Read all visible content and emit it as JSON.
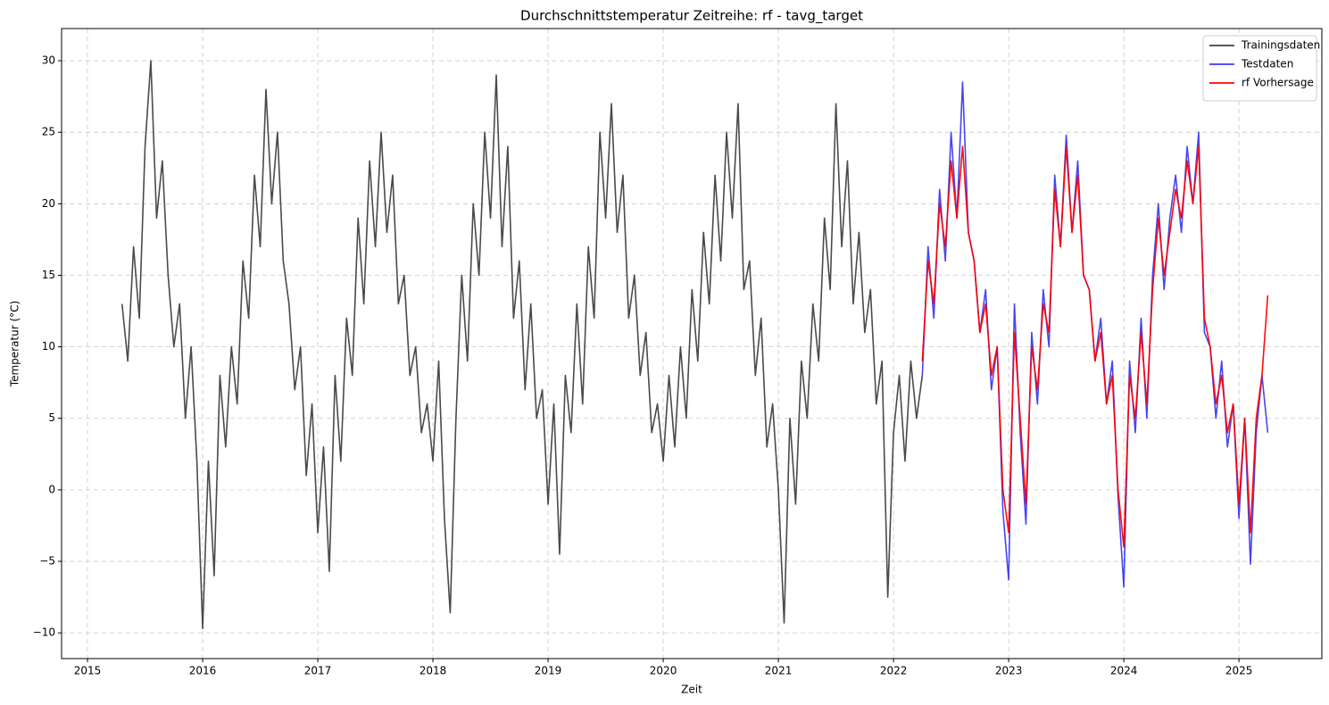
{
  "chart_data": {
    "type": "line",
    "title": "Durchschnittstemperatur Zeitreihe: rf - tavg_target",
    "x_label": "Zeit",
    "y_label": "Temperatur (°C)",
    "xlim": [
      2014.775,
      2025.72
    ],
    "ylim": [
      -11.8,
      32.25
    ],
    "xticks": [
      2015,
      2016,
      2017,
      2018,
      2019,
      2020,
      2021,
      2022,
      2023,
      2024,
      2025
    ],
    "yticks": [
      {
        "value": -10,
        "label": "−10"
      },
      {
        "value": -5,
        "label": "−5"
      },
      0,
      5,
      10,
      15,
      20,
      25,
      30
    ],
    "grid": true,
    "legend": "upper-right",
    "series": [
      {
        "name": "Trainingsdaten",
        "color": "#404040",
        "x": [
          2015.3,
          2015.35,
          2015.4,
          2015.45,
          2015.5,
          2015.55,
          2015.6,
          2015.65,
          2015.7,
          2015.75,
          2015.8,
          2015.85,
          2015.9,
          2015.95,
          2016.0,
          2016.05,
          2016.1,
          2016.15,
          2016.2,
          2016.25,
          2016.3,
          2016.35,
          2016.4,
          2016.45,
          2016.5,
          2016.55,
          2016.6,
          2016.65,
          2016.7,
          2016.75,
          2016.8,
          2016.85,
          2016.9,
          2016.95,
          2017.0,
          2017.05,
          2017.1,
          2017.15,
          2017.2,
          2017.25,
          2017.3,
          2017.35,
          2017.4,
          2017.45,
          2017.5,
          2017.55,
          2017.6,
          2017.65,
          2017.7,
          2017.75,
          2017.8,
          2017.85,
          2017.9,
          2017.95,
          2018.0,
          2018.05,
          2018.1,
          2018.15,
          2018.2,
          2018.25,
          2018.3,
          2018.35,
          2018.4,
          2018.45,
          2018.5,
          2018.55,
          2018.6,
          2018.65,
          2018.7,
          2018.75,
          2018.8,
          2018.85,
          2018.9,
          2018.95,
          2019.0,
          2019.05,
          2019.1,
          2019.15,
          2019.2,
          2019.25,
          2019.3,
          2019.35,
          2019.4,
          2019.45,
          2019.5,
          2019.55,
          2019.6,
          2019.65,
          2019.7,
          2019.75,
          2019.8,
          2019.85,
          2019.9,
          2019.95,
          2020.0,
          2020.05,
          2020.1,
          2020.15,
          2020.2,
          2020.25,
          2020.3,
          2020.35,
          2020.4,
          2020.45,
          2020.5,
          2020.55,
          2020.6,
          2020.65,
          2020.7,
          2020.75,
          2020.8,
          2020.85,
          2020.9,
          2020.95,
          2021.0,
          2021.05,
          2021.1,
          2021.15,
          2021.2,
          2021.25,
          2021.3,
          2021.35,
          2021.4,
          2021.45,
          2021.5,
          2021.55,
          2021.6,
          2021.65,
          2021.7,
          2021.75,
          2021.8,
          2021.85,
          2021.9,
          2021.95,
          2022.0,
          2022.05,
          2022.1,
          2022.15,
          2022.2,
          2022.25
        ],
        "values": [
          13,
          9,
          17,
          12,
          24,
          30,
          19,
          23,
          15,
          10,
          13,
          5,
          10,
          2,
          -9.7,
          2,
          -6,
          8,
          3,
          10,
          6,
          16,
          12,
          22,
          17,
          28,
          20,
          25,
          16,
          13,
          7,
          10,
          1,
          6,
          -3,
          3,
          -5.7,
          8,
          2,
          12,
          8,
          19,
          13,
          23,
          17,
          25,
          18,
          22,
          13,
          15,
          8,
          10,
          4,
          6,
          2,
          9,
          -2,
          -8.6,
          5,
          15,
          9,
          20,
          15,
          25,
          19,
          29,
          17,
          24,
          12,
          16,
          7,
          13,
          5,
          7,
          -1,
          6,
          -4.5,
          8,
          4,
          13,
          6,
          17,
          12,
          25,
          19,
          27,
          18,
          22,
          12,
          15,
          8,
          11,
          4,
          6,
          2,
          8,
          3,
          10,
          5,
          14,
          9,
          18,
          13,
          22,
          16,
          25,
          19,
          27,
          14,
          16,
          8,
          12,
          3,
          6,
          0,
          -9.3,
          5,
          -1,
          9,
          5,
          13,
          9,
          19,
          14,
          27,
          17,
          23,
          13,
          18,
          11,
          14,
          6,
          9,
          -7.5,
          4,
          8,
          2,
          9,
          5,
          8
        ]
      },
      {
        "name": "Testdaten",
        "color": "#3c3cf0",
        "x": [
          2022.25,
          2022.3,
          2022.35,
          2022.4,
          2022.45,
          2022.5,
          2022.55,
          2022.6,
          2022.65,
          2022.7,
          2022.75,
          2022.8,
          2022.85,
          2022.9,
          2022.95,
          2023.0,
          2023.05,
          2023.1,
          2023.15,
          2023.2,
          2023.25,
          2023.3,
          2023.35,
          2023.4,
          2023.45,
          2023.5,
          2023.55,
          2023.6,
          2023.65,
          2023.7,
          2023.75,
          2023.8,
          2023.85,
          2023.9,
          2023.95,
          2024.0,
          2024.05,
          2024.1,
          2024.15,
          2024.2,
          2024.25,
          2024.3,
          2024.35,
          2024.4,
          2024.45,
          2024.5,
          2024.55,
          2024.6,
          2024.65,
          2024.7,
          2024.75,
          2024.8,
          2024.85,
          2024.9,
          2024.95,
          2025.0,
          2025.05,
          2025.1,
          2025.15,
          2025.2,
          2025.25
        ],
        "values": [
          8,
          17,
          12,
          21,
          16,
          25,
          19,
          28.5,
          18,
          16,
          11,
          14,
          7,
          10,
          -1.5,
          -6.3,
          13,
          4,
          -2.4,
          11,
          6,
          14,
          10,
          22,
          17,
          24.8,
          18,
          23,
          15,
          14,
          9,
          12,
          6,
          9,
          -0.5,
          -6.8,
          9,
          4,
          12,
          5,
          15,
          20,
          14,
          19,
          22,
          18,
          24,
          20,
          25,
          11,
          10,
          5,
          9,
          3,
          6,
          -2,
          5,
          -5.2,
          4,
          8,
          4
        ]
      },
      {
        "name": "rf Vorhersage",
        "color": "#ff0000",
        "x": [
          2022.25,
          2022.3,
          2022.35,
          2022.4,
          2022.45,
          2022.5,
          2022.55,
          2022.6,
          2022.65,
          2022.7,
          2022.75,
          2022.8,
          2022.85,
          2022.9,
          2022.95,
          2023.0,
          2023.05,
          2023.1,
          2023.15,
          2023.2,
          2023.25,
          2023.3,
          2023.35,
          2023.4,
          2023.45,
          2023.5,
          2023.55,
          2023.6,
          2023.65,
          2023.7,
          2023.75,
          2023.8,
          2023.85,
          2023.9,
          2023.95,
          2024.0,
          2024.05,
          2024.1,
          2024.15,
          2024.2,
          2024.25,
          2024.3,
          2024.35,
          2024.4,
          2024.45,
          2024.5,
          2024.55,
          2024.6,
          2024.65,
          2024.7,
          2024.75,
          2024.8,
          2024.85,
          2024.9,
          2024.95,
          2025.0,
          2025.05,
          2025.1,
          2025.15,
          2025.2,
          2025.25
        ],
        "values": [
          9,
          16,
          13,
          20,
          17,
          23,
          19,
          24,
          18,
          16,
          11,
          13,
          8,
          10,
          0,
          -3,
          11,
          5,
          -1,
          10,
          7,
          13,
          11,
          21,
          17,
          24,
          18,
          22,
          15,
          14,
          9,
          11,
          6,
          8,
          0,
          -4,
          8,
          5,
          11,
          6,
          14,
          19,
          15,
          18,
          21,
          19,
          23,
          20,
          24,
          12,
          10,
          6,
          8,
          4,
          6,
          -1,
          5,
          -3,
          5,
          8,
          13.6
        ]
      }
    ]
  }
}
